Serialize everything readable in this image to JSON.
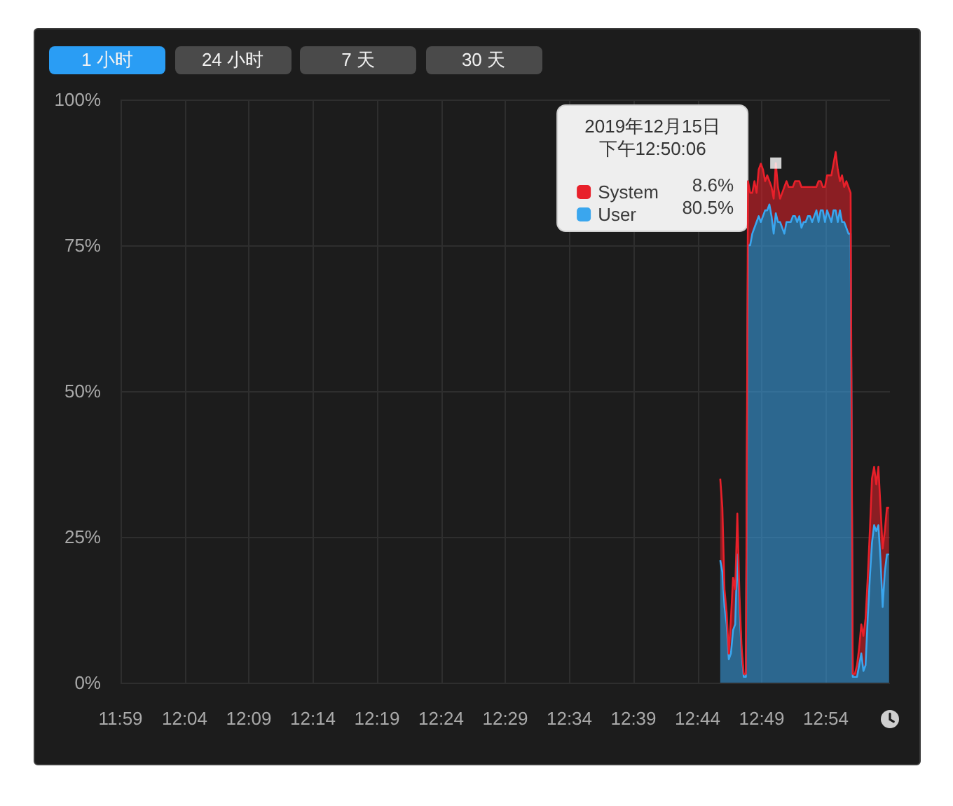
{
  "chart_data": {
    "type": "area",
    "stacked": true,
    "x": [
      "2019-12-15T12:45:46",
      "2019-12-15T12:45:56",
      "2019-12-15T12:46:06",
      "2019-12-15T12:46:16",
      "2019-12-15T12:46:26",
      "2019-12-15T12:46:36",
      "2019-12-15T12:46:46",
      "2019-12-15T12:46:56",
      "2019-12-15T12:47:06",
      "2019-12-15T12:47:16",
      "2019-12-15T12:47:26",
      "2019-12-15T12:47:36",
      "2019-12-15T12:47:46",
      "2019-12-15T12:47:56",
      "2019-12-15T12:48:06",
      "2019-12-15T12:48:16",
      "2019-12-15T12:48:26",
      "2019-12-15T12:48:36",
      "2019-12-15T12:48:46",
      "2019-12-15T12:48:56",
      "2019-12-15T12:49:06",
      "2019-12-15T12:49:16",
      "2019-12-15T12:49:26",
      "2019-12-15T12:49:36",
      "2019-12-15T12:49:46",
      "2019-12-15T12:49:56",
      "2019-12-15T12:50:06",
      "2019-12-15T12:50:16",
      "2019-12-15T12:50:26",
      "2019-12-15T12:50:36",
      "2019-12-15T12:50:46",
      "2019-12-15T12:50:56",
      "2019-12-15T12:51:06",
      "2019-12-15T12:51:16",
      "2019-12-15T12:51:26",
      "2019-12-15T12:51:36",
      "2019-12-15T12:51:46",
      "2019-12-15T12:51:56",
      "2019-12-15T12:52:06",
      "2019-12-15T12:52:16",
      "2019-12-15T12:52:26",
      "2019-12-15T12:52:36",
      "2019-12-15T12:52:46",
      "2019-12-15T12:52:56",
      "2019-12-15T12:53:06",
      "2019-12-15T12:53:16",
      "2019-12-15T12:53:26",
      "2019-12-15T12:53:36",
      "2019-12-15T12:53:46",
      "2019-12-15T12:53:56",
      "2019-12-15T12:54:06",
      "2019-12-15T12:54:16",
      "2019-12-15T12:54:26",
      "2019-12-15T12:54:36",
      "2019-12-15T12:54:46",
      "2019-12-15T12:54:56",
      "2019-12-15T12:55:06",
      "2019-12-15T12:55:16",
      "2019-12-15T12:55:26",
      "2019-12-15T12:55:36",
      "2019-12-15T12:55:46",
      "2019-12-15T12:55:56",
      "2019-12-15T12:56:06",
      "2019-12-15T12:56:16",
      "2019-12-15T12:56:26",
      "2019-12-15T12:56:36",
      "2019-12-15T12:56:46",
      "2019-12-15T12:56:56",
      "2019-12-15T12:57:06",
      "2019-12-15T12:57:16",
      "2019-12-15T12:57:26",
      "2019-12-15T12:57:36",
      "2019-12-15T12:57:46",
      "2019-12-15T12:57:56",
      "2019-12-15T12:58:06",
      "2019-12-15T12:58:16",
      "2019-12-15T12:58:26",
      "2019-12-15T12:58:36",
      "2019-12-15T12:58:46",
      "2019-12-15T12:58:56"
    ],
    "series": [
      {
        "name": "User",
        "color": "#3aa6ee",
        "values": [
          21,
          19,
          13,
          10,
          4,
          5,
          9,
          10,
          22,
          13,
          5,
          1,
          1,
          75,
          75,
          77,
          78,
          79,
          80,
          79,
          80,
          81,
          81,
          82,
          80,
          77,
          80.5,
          79,
          79,
          78,
          77,
          79,
          79,
          79,
          80,
          80,
          79,
          80,
          78,
          79,
          79,
          80,
          80,
          79,
          80,
          81,
          79,
          81,
          81,
          79,
          81,
          80,
          79,
          81,
          81,
          79,
          81,
          79,
          79,
          78,
          77,
          77,
          1,
          1,
          1,
          3,
          5,
          2,
          3,
          11,
          18,
          24,
          27,
          26,
          27,
          21,
          13,
          19,
          22,
          22
        ]
      },
      {
        "name": "System",
        "color": "#e8202a",
        "values": [
          14,
          11,
          3,
          2,
          1,
          6,
          9,
          6,
          7,
          2,
          1,
          0.5,
          0.5,
          11,
          9,
          7,
          8,
          5,
          8,
          10,
          8,
          5,
          6,
          4,
          5,
          6,
          8.6,
          6,
          4,
          6,
          8,
          7,
          6,
          6,
          5,
          6,
          7,
          6,
          7,
          6,
          6,
          5,
          5,
          6,
          5,
          4,
          7,
          5,
          4,
          6,
          6,
          7,
          8,
          8,
          10,
          9,
          5,
          8,
          6,
          8,
          8,
          7,
          0.5,
          0.5,
          2,
          3,
          5,
          6,
          8,
          7,
          8,
          11,
          10,
          8,
          10,
          9,
          10,
          7,
          8,
          8
        ]
      },
      {
        "type": "scatter",
        "color": "#ffffff",
        "x": [
          "2019-12-15T12:50:06"
        ],
        "values": [
          89.1
        ]
      }
    ],
    "xlim": [
      "2019-12-15T11:59",
      "2019-12-15T12:59"
    ],
    "xticks": [
      {
        "value": "2019-12-15T11:59",
        "label": "11:59"
      },
      {
        "value": "2019-12-15T12:04",
        "label": "12:04"
      },
      {
        "value": "2019-12-15T12:09",
        "label": "12:09"
      },
      {
        "value": "2019-12-15T12:14",
        "label": "12:14"
      },
      {
        "value": "2019-12-15T12:19",
        "label": "12:19"
      },
      {
        "value": "2019-12-15T12:24",
        "label": "12:24"
      },
      {
        "value": "2019-12-15T12:29",
        "label": "12:29"
      },
      {
        "value": "2019-12-15T12:34",
        "label": "12:34"
      },
      {
        "value": "2019-12-15T12:39",
        "label": "12:39"
      },
      {
        "value": "2019-12-15T12:44",
        "label": "12:44"
      },
      {
        "value": "2019-12-15T12:49",
        "label": "12:49"
      },
      {
        "value": "2019-12-15T12:54",
        "label": "12:54"
      }
    ],
    "ylim": [
      0,
      100
    ],
    "yticks": [
      {
        "value": 0,
        "label": "0%"
      },
      {
        "value": 25,
        "label": "25%"
      },
      {
        "value": 50,
        "label": "50%"
      },
      {
        "value": 75,
        "label": "75%"
      },
      {
        "value": 100,
        "label": "100%"
      }
    ],
    "grid": true,
    "legend": "top right",
    "legend_title": "2019年12月15日下午12:50:06",
    "annotations": [
      "1 小时",
      "24 小时",
      "7 天",
      "30 天",
      "8.6%",
      "80.5%"
    ]
  }
}
